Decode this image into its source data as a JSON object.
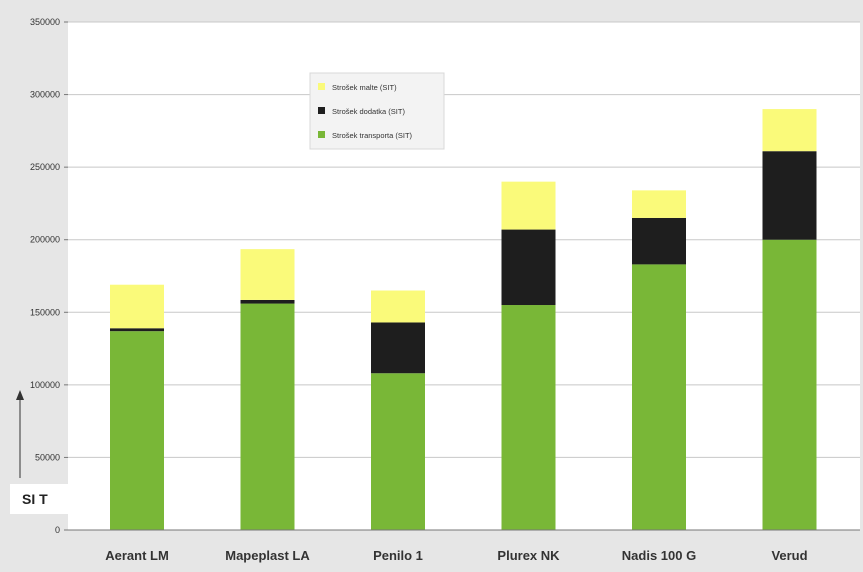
{
  "chart_data": {
    "type": "bar",
    "stacked": true,
    "categories": [
      "Aerant LM",
      "Mapeplast LA",
      "Penilo 1",
      "Plurex NK",
      "Nadis 100 G",
      "Verud"
    ],
    "series": [
      {
        "name": "Strošek transporta (SIT)",
        "color": "#79b737",
        "values": [
          137000,
          156000,
          108000,
          155000,
          183000,
          200000
        ]
      },
      {
        "name": "Strošek dodatka (SIT)",
        "color": "#1e1e1e",
        "values": [
          2000,
          2500,
          35000,
          52000,
          32000,
          61000
        ]
      },
      {
        "name": "Strošek malte (SIT)",
        "color": "#fafa7a",
        "values": [
          30000,
          35000,
          22000,
          33000,
          19000,
          29000
        ]
      }
    ],
    "ylim": [
      0,
      350000
    ],
    "yticks": [
      0,
      50000,
      100000,
      150000,
      200000,
      250000,
      300000,
      350000
    ],
    "ylabel": "SI T",
    "xlabel": "",
    "title": "",
    "grid": true,
    "legend_position": "top-center"
  },
  "legend_order": [
    2,
    1,
    0
  ]
}
